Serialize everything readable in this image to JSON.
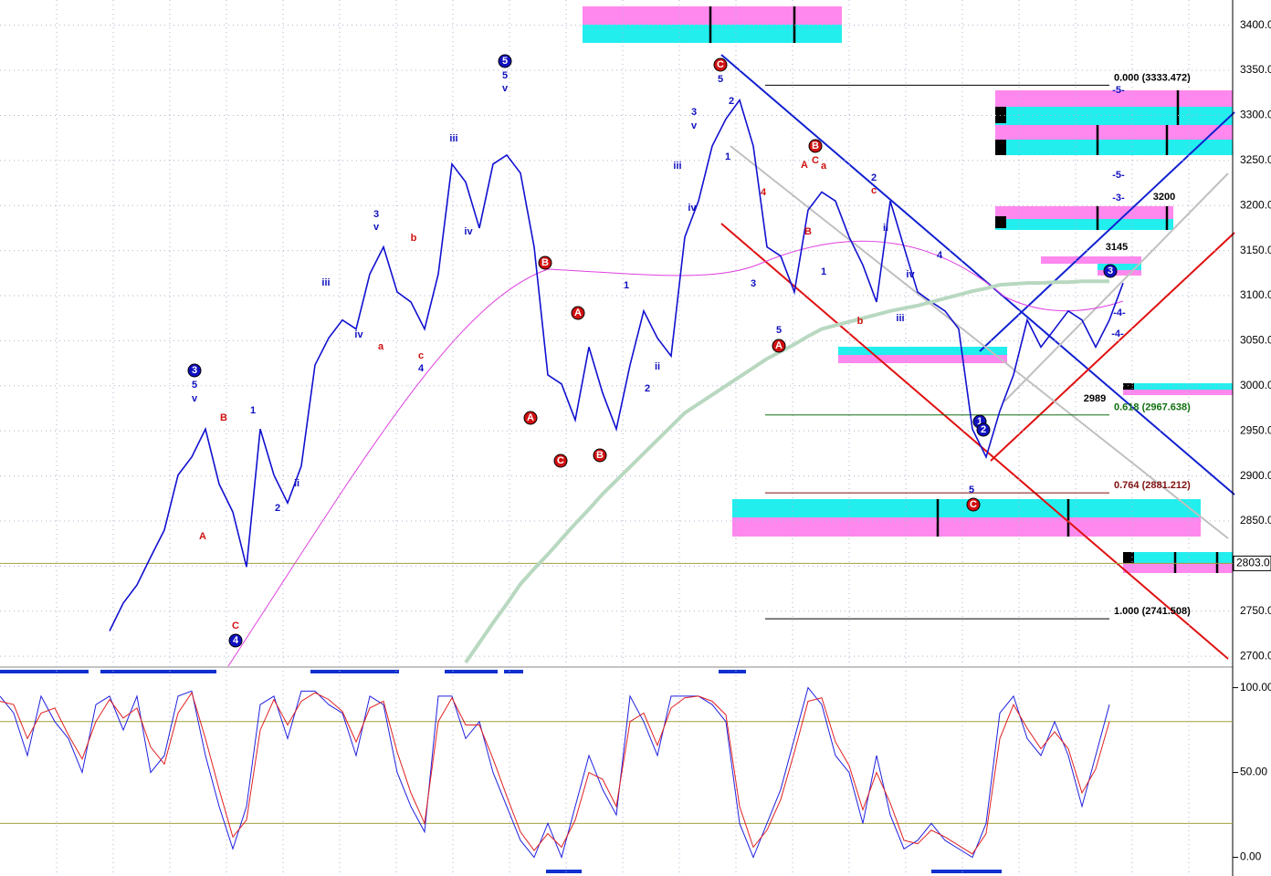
{
  "chart_data": [
    {
      "type": "line",
      "grid": true,
      "ylim": [
        2688,
        3428
      ],
      "yticks": [
        {
          "value": 2700,
          "label": "2700.00"
        },
        {
          "value": 2750,
          "label": "2750.00"
        },
        {
          "value": 2800,
          "label": "2800.00"
        },
        {
          "value": 2850,
          "label": "2850.00"
        },
        {
          "value": 2900,
          "label": "2900.00"
        },
        {
          "value": 2950,
          "label": "2950.00"
        },
        {
          "value": 3000,
          "label": "3000.00"
        },
        {
          "value": 3050,
          "label": "3050.00"
        },
        {
          "value": 3100,
          "label": "3100.00"
        },
        {
          "value": 3150,
          "label": "3150.00"
        },
        {
          "value": 3200,
          "label": "3200.00"
        },
        {
          "value": 3250,
          "label": "3250.00"
        },
        {
          "value": 3300,
          "label": "3300.00"
        },
        {
          "value": 3350,
          "label": "3350.00"
        },
        {
          "value": 3400,
          "label": "3400.00"
        }
      ],
      "series": [
        {
          "color": "#1010d0",
          "values": [
            2728,
            2759,
            2779,
            2810,
            2840,
            2901,
            2921,
            2952,
            2891,
            2860,
            2799,
            2952,
            2901,
            2870,
            2911,
            3023,
            3053,
            3073,
            3063,
            3124,
            3154,
            3104,
            3093,
            3063,
            3124,
            3246,
            3226,
            3175,
            3246,
            3256,
            3236,
            3154,
            3012,
            3002,
            2962,
            3043,
            2992,
            2952,
            3023,
            3083,
            3053,
            3033,
            3165,
            3205,
            3266,
            3296,
            3317,
            3266,
            3154,
            3144,
            3104,
            3195,
            3215,
            3205,
            3165,
            3134,
            3093,
            3205,
            3154,
            3104,
            3093,
            3083,
            3063,
            2952,
            2921,
            2972,
            3012,
            3073,
            3043,
            3063,
            3083,
            3073,
            3043,
            3073,
            3114
          ]
        },
        {
          "color": "#b8d8c0",
          "values": [
            null,
            null,
            null,
            null,
            null,
            null,
            null,
            null,
            null,
            null,
            null,
            null,
            null,
            null,
            null,
            null,
            null,
            null,
            null,
            null,
            null,
            null,
            null,
            null,
            null,
            null,
            2693,
            2715,
            2737,
            2758,
            2780,
            2797,
            2813,
            2830,
            2847,
            2863,
            2880,
            2895,
            2910,
            2925,
            2940,
            2955,
            2970,
            2980,
            2990,
            3000,
            3010,
            3020,
            3030,
            3038,
            3046,
            3055,
            3063,
            3067,
            3071,
            3075,
            3079,
            3083,
            3086,
            3089,
            3093,
            3097,
            3101,
            3105,
            3108,
            3112,
            3113,
            3114,
            3114,
            3115,
            3115,
            3116,
            3116,
            3116
          ]
        }
      ],
      "fib_levels": [
        {
          "value": 3333.472,
          "label": "0.000 (3333.472)"
        },
        {
          "value": 2967.638,
          "label": "0.618 (2967.638)"
        },
        {
          "value": 2881.212,
          "label": "0.764 (2881.212)"
        },
        {
          "value": 2741.508,
          "label": "1.000 (2741.508)"
        }
      ],
      "hline": {
        "value": 2803,
        "label": "2803.0"
      },
      "annotations": [
        "3",
        "5",
        "v",
        "4",
        "C",
        "B",
        "A",
        "1",
        "2",
        "ii",
        "3",
        "v",
        "iii",
        "iv",
        "a",
        "b",
        "c",
        "4",
        "iii",
        "iv",
        "5",
        "5",
        "v",
        "B",
        "A",
        "C",
        "B",
        "A",
        "1",
        "2",
        "ii",
        "iii",
        "iv",
        "3",
        "v",
        "C",
        "5",
        "2",
        "1",
        "4",
        "3",
        "5",
        "A",
        "A",
        "B",
        "C",
        "a",
        "B",
        "1",
        "b",
        "2",
        "c",
        "ii",
        "iv",
        "iii",
        "4",
        "5",
        "C",
        "1",
        "2",
        "3",
        "-4-",
        "-4-",
        "-5-",
        "-5-",
        "-3-",
        "3200",
        "3145",
        "2989"
      ]
    },
    {
      "type": "line",
      "ylim": [
        -11,
        110
      ],
      "yticks": [
        {
          "value": 0,
          "label": "0.00"
        },
        {
          "value": 50,
          "label": "50.00"
        },
        {
          "value": 100,
          "label": "100.00"
        }
      ],
      "hlines": [
        20,
        80
      ],
      "series": [
        {
          "color": "#2020e0",
          "values": [
            95,
            85,
            60,
            95,
            80,
            70,
            50,
            90,
            95,
            75,
            95,
            50,
            60,
            95,
            98,
            60,
            30,
            5,
            30,
            90,
            95,
            70,
            98,
            98,
            90,
            85,
            60,
            95,
            90,
            50,
            30,
            15,
            95,
            95,
            70,
            80,
            50,
            30,
            10,
            0,
            20,
            0,
            30,
            60,
            40,
            25,
            95,
            80,
            60,
            95,
            95,
            95,
            90,
            80,
            20,
            0,
            20,
            40,
            70,
            100,
            90,
            60,
            50,
            20,
            60,
            25,
            5,
            10,
            20,
            10,
            5,
            0,
            20,
            85,
            95,
            70,
            60,
            80,
            60,
            30,
            60,
            90
          ]
        },
        {
          "color": "#e02020",
          "values": [
            92,
            90,
            70,
            85,
            88,
            72,
            58,
            80,
            93,
            82,
            88,
            65,
            55,
            85,
            97,
            70,
            40,
            12,
            22,
            75,
            93,
            78,
            92,
            97,
            93,
            86,
            68,
            88,
            92,
            62,
            38,
            20,
            80,
            94,
            78,
            78,
            58,
            36,
            15,
            4,
            14,
            6,
            22,
            50,
            46,
            30,
            80,
            85,
            66,
            88,
            94,
            95,
            92,
            84,
            30,
            6,
            16,
            34,
            62,
            92,
            94,
            68,
            54,
            28,
            50,
            32,
            10,
            8,
            16,
            12,
            7,
            2,
            14,
            70,
            90,
            76,
            64,
            74,
            64,
            38,
            52,
            80
          ]
        }
      ]
    }
  ]
}
